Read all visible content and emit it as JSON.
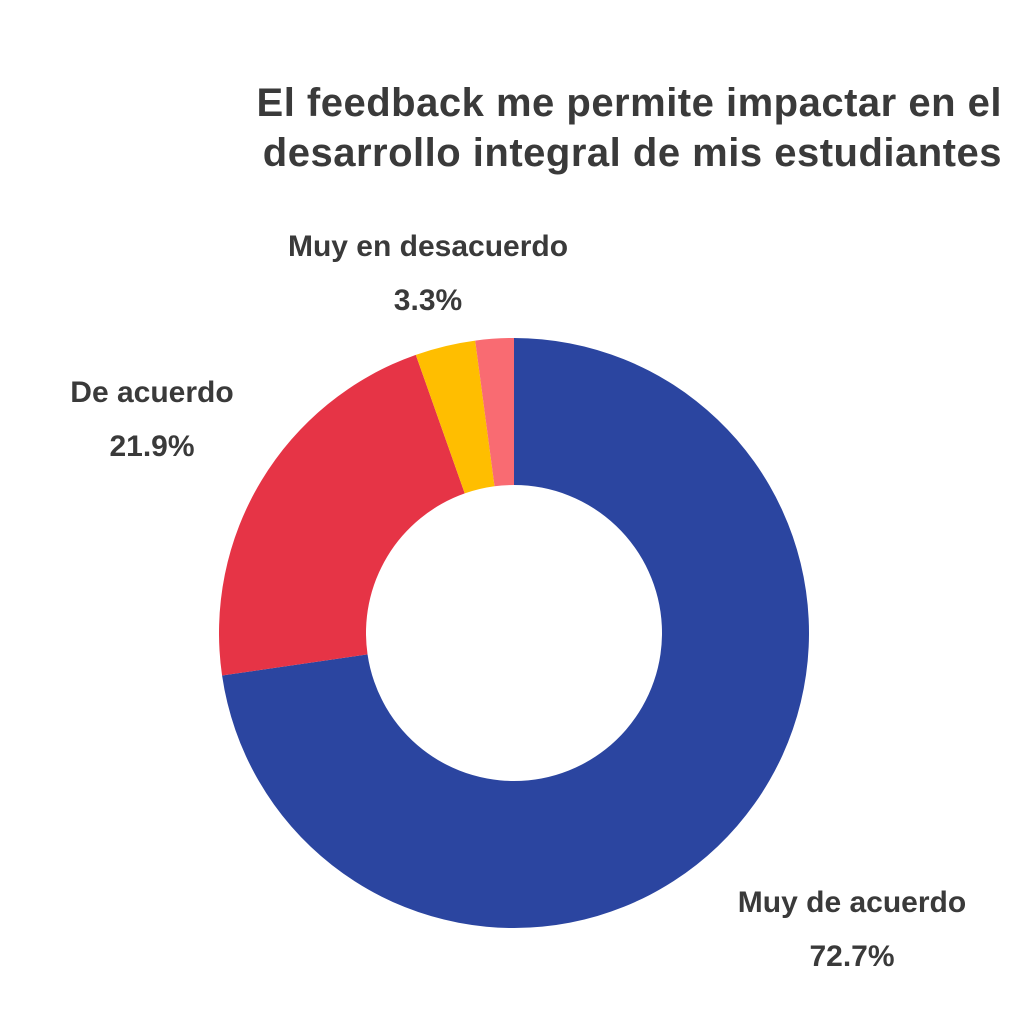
{
  "chart_data": {
    "type": "pie",
    "title_lines": [
      "El feedback me permite impactar en el",
      "desarrollo integral de mis estudiantes"
    ],
    "title": "El feedback me permite impactar en el desarrollo integral de mis estudiantes",
    "donut": true,
    "slices": [
      {
        "label": "Muy de acuerdo",
        "value": 72.7,
        "value_label": "72.7%",
        "color": "#2B45A0"
      },
      {
        "label": "De acuerdo",
        "value": 21.9,
        "value_label": "21.9%",
        "color": "#E63446"
      },
      {
        "label": "Muy en desacuerdo",
        "value": 3.3,
        "value_label": "3.3%",
        "color": "#FFBE00"
      },
      {
        "label": "",
        "value": 2.1,
        "value_label": "",
        "color": "#F96B72"
      }
    ]
  }
}
